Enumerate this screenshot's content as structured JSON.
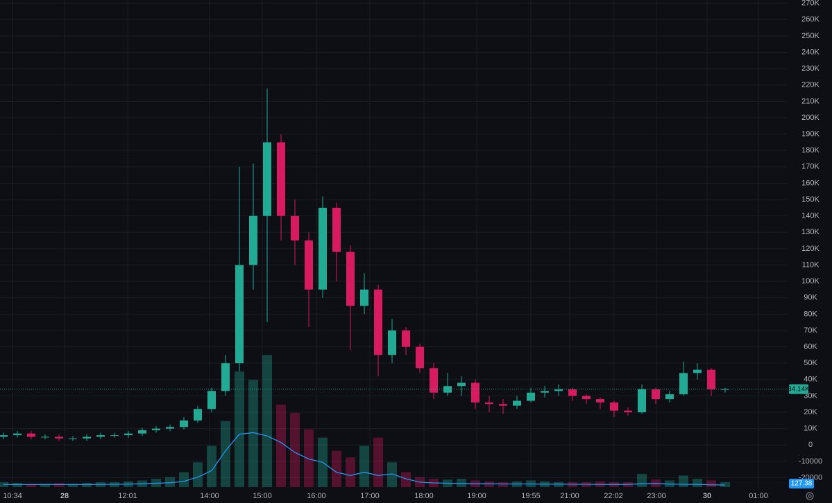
{
  "chart_data": {
    "type": "candlestick",
    "up_color": "#22ab94",
    "down_color": "#d81b60",
    "volume_ma_color": "#2196f3",
    "grid": true,
    "ylim": [
      -27000,
      272000
    ],
    "yticks": [
      {
        "value": 270000,
        "label": "270K"
      },
      {
        "value": 260000,
        "label": "260K"
      },
      {
        "value": 250000,
        "label": "250K"
      },
      {
        "value": 240000,
        "label": "240K"
      },
      {
        "value": 230000,
        "label": "230K"
      },
      {
        "value": 220000,
        "label": "220K"
      },
      {
        "value": 210000,
        "label": "210K"
      },
      {
        "value": 200000,
        "label": "200K"
      },
      {
        "value": 190000,
        "label": "190K"
      },
      {
        "value": 180000,
        "label": "180K"
      },
      {
        "value": 170000,
        "label": "170K"
      },
      {
        "value": 160000,
        "label": "160K"
      },
      {
        "value": 150000,
        "label": "150K"
      },
      {
        "value": 140000,
        "label": "140K"
      },
      {
        "value": 130000,
        "label": "130K"
      },
      {
        "value": 120000,
        "label": "120K"
      },
      {
        "value": 110000,
        "label": "110K"
      },
      {
        "value": 100000,
        "label": "100K"
      },
      {
        "value": 90000,
        "label": "90K"
      },
      {
        "value": 80000,
        "label": "80K"
      },
      {
        "value": 70000,
        "label": "70K"
      },
      {
        "value": 60000,
        "label": "60K"
      },
      {
        "value": 50000,
        "label": "50K"
      },
      {
        "value": 40000,
        "label": "40K"
      },
      {
        "value": 30000,
        "label": "30K"
      },
      {
        "value": 20000,
        "label": "20K"
      },
      {
        "value": 10000,
        "label": "10K"
      },
      0,
      -10000,
      -20000
    ],
    "xlim": [
      -0.25,
      56.5
    ],
    "xticks": [
      {
        "value": 0.65,
        "label": "10:34"
      },
      {
        "value": 4.4,
        "label": "28"
      },
      {
        "value": 8.95,
        "label": "12:01"
      },
      {
        "value": 14.85,
        "label": "14:00"
      },
      {
        "value": 18.65,
        "label": "15:00"
      },
      {
        "value": 22.55,
        "label": "16:00"
      },
      {
        "value": 26.4,
        "label": "17:00"
      },
      {
        "value": 30.3,
        "label": "18:00"
      },
      {
        "value": 34.1,
        "label": "19:00"
      },
      {
        "value": 38,
        "label": "19:55"
      },
      {
        "value": 40.8,
        "label": "21:00"
      },
      {
        "value": 43.95,
        "label": "22:02"
      },
      {
        "value": 47.05,
        "label": "23:00"
      },
      {
        "value": 50.7,
        "label": "30"
      },
      {
        "value": 54.4,
        "label": "01:00"
      }
    ],
    "open": [
      5000,
      6000,
      7000,
      5000,
      5000,
      4000,
      4000,
      5000,
      6000,
      6000,
      7000,
      9000,
      10000,
      11000,
      15000,
      22000,
      33000,
      50000,
      110000,
      140000,
      185000,
      140000,
      125000,
      95000,
      145000,
      118000,
      85000,
      95000,
      55000,
      70000,
      60000,
      47000,
      32000,
      36000,
      38000,
      26000,
      25000,
      24000,
      27000,
      32000,
      33000,
      34000,
      30000,
      28000,
      26000,
      21000,
      20000,
      34000,
      28000,
      31000,
      44000,
      46000,
      34000
    ],
    "high": [
      7500,
      8500,
      8500,
      6500,
      6500,
      5500,
      6500,
      7500,
      7500,
      8500,
      10500,
      11500,
      12500,
      17000,
      24000,
      35000,
      55000,
      170000,
      172000,
      218000,
      190000,
      150000,
      130000,
      152000,
      148000,
      122000,
      105000,
      98000,
      77000,
      72000,
      62000,
      50000,
      44000,
      42000,
      40000,
      30000,
      28000,
      30000,
      35000,
      36000,
      37000,
      35000,
      31000,
      29000,
      27000,
      23000,
      37000,
      35000,
      33000,
      51000,
      50000,
      47000,
      35000
    ],
    "low": [
      3500,
      4500,
      3500,
      3500,
      2500,
      2500,
      2500,
      3500,
      4500,
      4500,
      5500,
      7500,
      8500,
      9500,
      13500,
      20000,
      30000,
      45000,
      95000,
      75000,
      125000,
      110000,
      72000,
      90000,
      100000,
      58000,
      80000,
      42000,
      50000,
      55000,
      44000,
      28000,
      30000,
      30000,
      22000,
      20000,
      19000,
      22000,
      26000,
      29000,
      30000,
      27000,
      25000,
      22000,
      17000,
      18000,
      19000,
      25000,
      26000,
      30000,
      40000,
      30000,
      32000
    ],
    "close": [
      6000,
      7000,
      5000,
      5000,
      4000,
      4000,
      5000,
      6000,
      6000,
      7000,
      9000,
      10000,
      11000,
      15000,
      22000,
      33000,
      50000,
      110000,
      140000,
      185000,
      140000,
      125000,
      95000,
      145000,
      118000,
      85000,
      95000,
      55000,
      70000,
      60000,
      47000,
      32000,
      36000,
      38000,
      26000,
      25000,
      24000,
      27000,
      32000,
      33000,
      34000,
      30000,
      28000,
      26000,
      21000,
      20000,
      34000,
      28000,
      31000,
      44000,
      46000,
      34000,
      34140
    ],
    "last_close_label": "34.14K",
    "volume_ylim": [
      0,
      8400
    ],
    "volume": [
      300,
      250,
      200,
      200,
      250,
      200,
      250,
      300,
      300,
      350,
      400,
      500,
      600,
      900,
      1500,
      2500,
      4000,
      7000,
      6500,
      8000,
      5000,
      4500,
      3500,
      3000,
      2200,
      1800,
      2500,
      3000,
      1500,
      900,
      600,
      500,
      450,
      500,
      400,
      350,
      300,
      350,
      400,
      350,
      300,
      300,
      300,
      350,
      300,
      300,
      800,
      450,
      400,
      700,
      500,
      400,
      300
    ],
    "volume_ma": [
      150,
      150,
      150,
      150,
      150,
      150,
      150,
      160,
      170,
      180,
      200,
      230,
      260,
      350,
      600,
      1000,
      2200,
      3200,
      3300,
      3100,
      2700,
      2100,
      1700,
      1500,
      900,
      700,
      900,
      700,
      800,
      500,
      300,
      250,
      230,
      220,
      200,
      200,
      190,
      190,
      190,
      180,
      180,
      170,
      170,
      160,
      160,
      160,
      200,
      220,
      180,
      170,
      160,
      140,
      127.38
    ]
  }
}
